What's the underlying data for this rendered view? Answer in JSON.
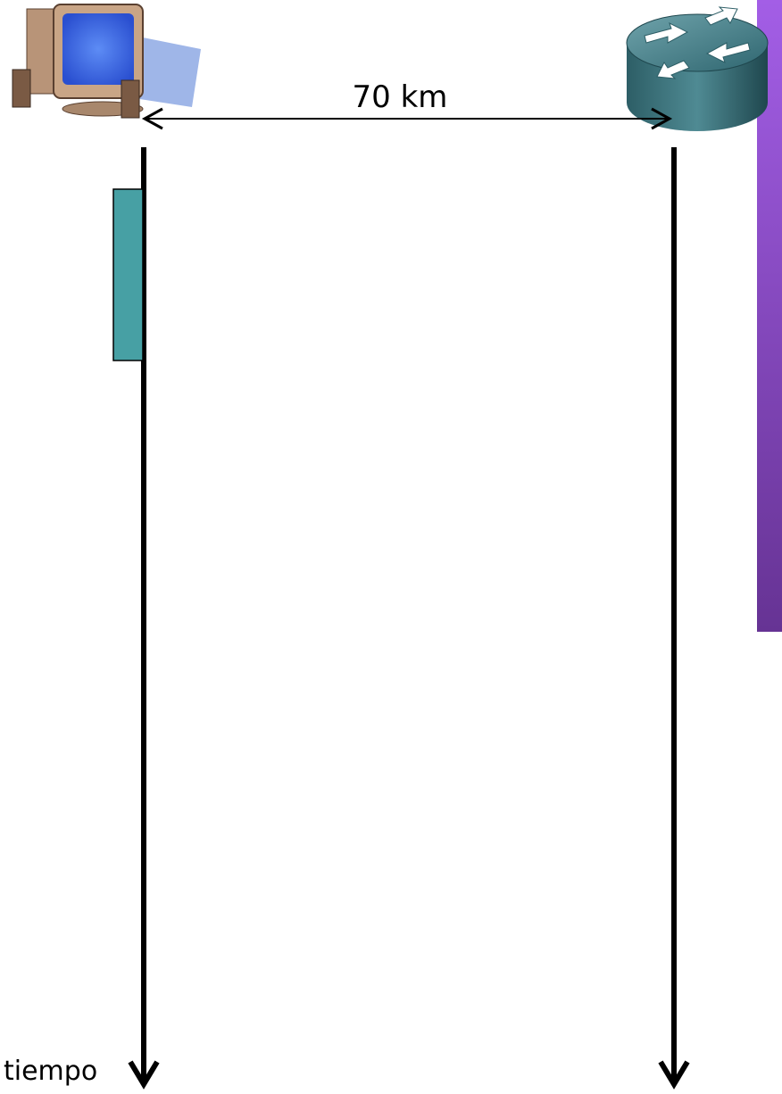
{
  "diagram": {
    "distance_label": "70 km",
    "time_axis_label": "tiempo"
  }
}
